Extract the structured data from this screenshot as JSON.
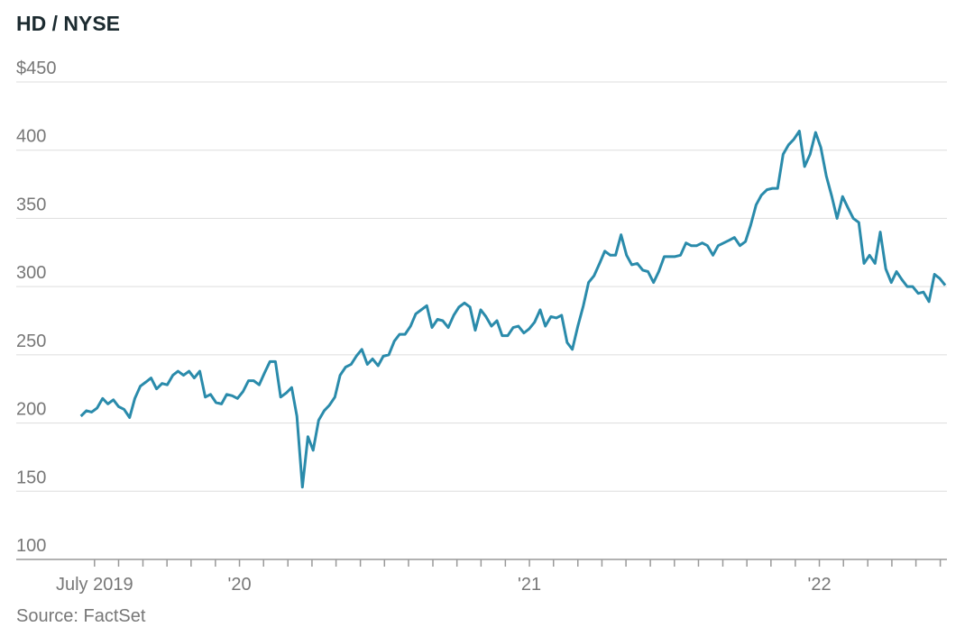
{
  "chart_data": {
    "type": "line",
    "title": "HD / NYSE",
    "source": "Source: FactSet",
    "xlim": [
      2019.23,
      2022.44
    ],
    "xticks": [
      {
        "value": 2019.5,
        "label": "July 2019"
      },
      {
        "value": 2020,
        "label": "'20"
      },
      {
        "value": 2021,
        "label": "'21"
      },
      {
        "value": 2022,
        "label": "'22"
      }
    ],
    "minor_xticks": [
      2019.583,
      2019.667,
      2019.75,
      2019.833,
      2019.917,
      2020.083,
      2020.167,
      2020.25,
      2020.333,
      2020.417,
      2020.5,
      2020.583,
      2020.667,
      2020.75,
      2020.833,
      2020.917,
      2021.083,
      2021.167,
      2021.25,
      2021.333,
      2021.417,
      2021.5,
      2021.583,
      2021.667,
      2021.75,
      2021.833,
      2021.917,
      2022.083,
      2022.167,
      2022.25,
      2022.333,
      2022.417
    ],
    "ylim": [
      100,
      450
    ],
    "yticks": [
      100,
      150,
      200,
      250,
      300,
      350,
      400,
      {
        "value": 450,
        "label": "$450"
      }
    ],
    "grid": true,
    "series": [
      {
        "color": "#2a8bab",
        "x": [
          2019.453,
          2019.472,
          2019.49,
          2019.509,
          2019.528,
          2019.546,
          2019.565,
          2019.583,
          2019.602,
          2019.621,
          2019.639,
          2019.658,
          2019.677,
          2019.695,
          2019.714,
          2019.733,
          2019.751,
          2019.77,
          2019.788,
          2019.807,
          2019.826,
          2019.844,
          2019.863,
          2019.882,
          2019.9,
          2019.919,
          2019.938,
          2019.956,
          2019.975,
          2019.993,
          2020.012,
          2020.031,
          2020.049,
          2020.068,
          2020.087,
          2020.105,
          2020.124,
          2020.142,
          2020.161,
          2020.18,
          2020.198,
          2020.217,
          2020.236,
          2020.254,
          2020.273,
          2020.292,
          2020.31,
          2020.329,
          2020.347,
          2020.366,
          2020.385,
          2020.403,
          2020.422,
          2020.441,
          2020.459,
          2020.478,
          2020.496,
          2020.515,
          2020.534,
          2020.552,
          2020.571,
          2020.59,
          2020.608,
          2020.627,
          2020.646,
          2020.664,
          2020.683,
          2020.701,
          2020.72,
          2020.739,
          2020.757,
          2020.776,
          2020.795,
          2020.813,
          2020.832,
          2020.85,
          2020.869,
          2020.888,
          2020.906,
          2020.925,
          2020.944,
          2020.962,
          2020.981,
          2020.999,
          2021.018,
          2021.037,
          2021.055,
          2021.074,
          2021.093,
          2021.111,
          2021.13,
          2021.148,
          2021.167,
          2021.186,
          2021.204,
          2021.223,
          2021.242,
          2021.26,
          2021.279,
          2021.297,
          2021.316,
          2021.335,
          2021.353,
          2021.372,
          2021.391,
          2021.409,
          2021.428,
          2021.446,
          2021.465,
          2021.484,
          2021.502,
          2021.521,
          2021.54,
          2021.558,
          2021.577,
          2021.596,
          2021.614,
          2021.633,
          2021.651,
          2021.67,
          2021.689,
          2021.707,
          2021.726,
          2021.745,
          2021.763,
          2021.782,
          2021.8,
          2021.819,
          2021.838,
          2021.856,
          2021.875,
          2021.894,
          2021.912,
          2021.931,
          2021.949,
          2021.968,
          2021.987,
          2022.005,
          2022.024,
          2022.043,
          2022.061,
          2022.08,
          2022.098,
          2022.117,
          2022.136,
          2022.154,
          2022.173,
          2022.192,
          2022.21,
          2022.229,
          2022.248,
          2022.266,
          2022.285,
          2022.303,
          2022.322,
          2022.341,
          2022.359,
          2022.378,
          2022.397,
          2022.415,
          2022.434
        ],
        "values": [
          205,
          209,
          208,
          211,
          218,
          214,
          217,
          212,
          210,
          204,
          218,
          227,
          230,
          233,
          225,
          229,
          228,
          235,
          238,
          235,
          238,
          233,
          238,
          219,
          221,
          215,
          214,
          221,
          220,
          218,
          223,
          231,
          231,
          228,
          237,
          245,
          245,
          219,
          222,
          226,
          205,
          153,
          190,
          180,
          202,
          209,
          213,
          219,
          235,
          241,
          243,
          249,
          254,
          243,
          247,
          242,
          249,
          250,
          260,
          265,
          265,
          271,
          280,
          283,
          286,
          270,
          276,
          275,
          270,
          279,
          285,
          288,
          285,
          268,
          283,
          278,
          271,
          275,
          264,
          264,
          270,
          271,
          266,
          269,
          274,
          283,
          271,
          278,
          277,
          279,
          259,
          254,
          271,
          286,
          303,
          308,
          317,
          326,
          323,
          323,
          338,
          323,
          316,
          317,
          312,
          311,
          303,
          311,
          322,
          322,
          322,
          323,
          332,
          330,
          330,
          332,
          330,
          323,
          330,
          332,
          334,
          336,
          330,
          333,
          345,
          360,
          367,
          371,
          372,
          372,
          397,
          404,
          408,
          414,
          388,
          397,
          413,
          402,
          381,
          366,
          350,
          366,
          358,
          350,
          347,
          317,
          323,
          317,
          340,
          313,
          303,
          311,
          305,
          300,
          300,
          295,
          296,
          289,
          309,
          306,
          301
        ]
      }
    ]
  }
}
